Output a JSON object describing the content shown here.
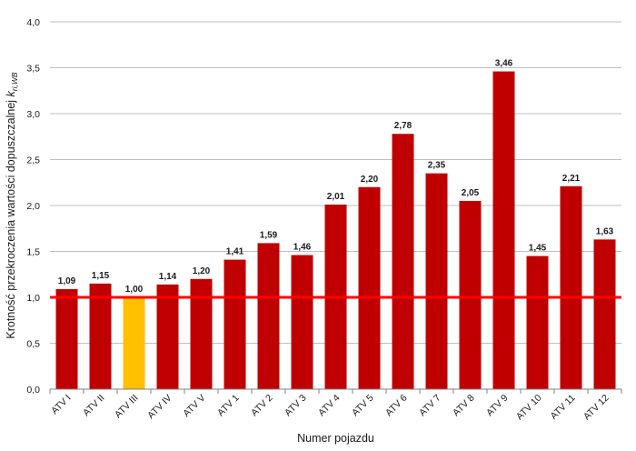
{
  "chart_data": {
    "type": "bar",
    "xlabel": "Numer pojazdu",
    "ylabel": "Krotność przekroczenia wartości dopuszczalnej",
    "ylabel_symbol": "k",
    "ylabel_subscript": "ri,WB",
    "ylim": [
      0,
      4
    ],
    "yticks": [
      0,
      0.5,
      1,
      1.5,
      2,
      2.5,
      3,
      3.5,
      4
    ],
    "ytick_labels": [
      "0,0",
      "0,5",
      "1,0",
      "1,5",
      "2,0",
      "2,5",
      "3,0",
      "3,5",
      "4,0"
    ],
    "grid": true,
    "categories": [
      "ATV I",
      "ATV II",
      "ATV III",
      "ATV IV",
      "ATV V",
      "ATV 1",
      "ATV 2",
      "ATV 3",
      "ATV 4",
      "ATV 5",
      "ATV 6",
      "ATV 7",
      "ATV 8",
      "ATV 9",
      "ATV 10",
      "ATV 11",
      "ATV 12"
    ],
    "values": [
      1.09,
      1.15,
      1.0,
      1.14,
      1.2,
      1.41,
      1.59,
      1.46,
      2.01,
      2.2,
      2.78,
      2.35,
      2.05,
      3.46,
      1.45,
      2.21,
      1.63
    ],
    "value_labels": [
      "1,09",
      "1,15",
      "1,00",
      "1,14",
      "1,20",
      "1,41",
      "1,59",
      "1,46",
      "2,01",
      "2,20",
      "2,78",
      "2,35",
      "2,05",
      "3,46",
      "1,45",
      "2,21",
      "1,63"
    ],
    "highlight_index": 2,
    "reference_line": 1.0,
    "colors": {
      "bar": "#c00000",
      "highlight": "#ffc000",
      "reference_line": "#ff0000",
      "grid": "#bfbfbf",
      "axis": "#808080"
    }
  }
}
